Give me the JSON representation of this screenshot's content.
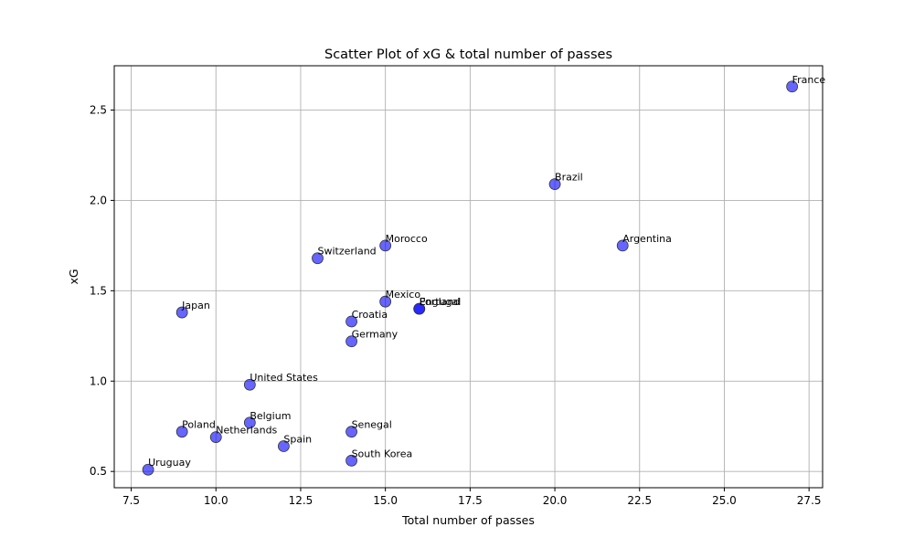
{
  "chart_data": {
    "type": "scatter",
    "title": "Scatter Plot of xG & total number of passes",
    "xlabel": "Total number of passes",
    "ylabel": "xG",
    "xlim": [
      7.0,
      27.9
    ],
    "ylim": [
      0.41,
      2.745
    ],
    "xticks": [
      7.5,
      10.0,
      12.5,
      15.0,
      17.5,
      20.0,
      22.5,
      25.0,
      27.5
    ],
    "yticks": [
      0.5,
      1.0,
      1.5,
      2.0,
      2.5
    ],
    "xtick_labels": [
      "7.5",
      "10.0",
      "12.5",
      "15.0",
      "17.5",
      "20.0",
      "22.5",
      "25.0",
      "27.5"
    ],
    "ytick_labels": [
      "0.5",
      "1.0",
      "1.5",
      "2.0",
      "2.5"
    ],
    "grid": true,
    "marker_color": "#0000ff",
    "marker_edge_color": "#333333",
    "marker_alpha": 0.6,
    "points": [
      {
        "label": "France",
        "x": 27,
        "y": 2.63
      },
      {
        "label": "Brazil",
        "x": 20,
        "y": 2.09
      },
      {
        "label": "Morocco",
        "x": 15,
        "y": 1.75
      },
      {
        "label": "Argentina",
        "x": 22,
        "y": 1.75
      },
      {
        "label": "Switzerland",
        "x": 13,
        "y": 1.68
      },
      {
        "label": "Mexico",
        "x": 15,
        "y": 1.44
      },
      {
        "label": "England",
        "x": 16,
        "y": 1.4
      },
      {
        "label": "Portugal",
        "x": 16,
        "y": 1.4
      },
      {
        "label": "Japan",
        "x": 9,
        "y": 1.38
      },
      {
        "label": "Croatia",
        "x": 14,
        "y": 1.33
      },
      {
        "label": "Germany",
        "x": 14,
        "y": 1.22
      },
      {
        "label": "United States",
        "x": 11,
        "y": 0.98
      },
      {
        "label": "Belgium",
        "x": 11,
        "y": 0.77
      },
      {
        "label": "Senegal",
        "x": 14,
        "y": 0.72
      },
      {
        "label": "Poland",
        "x": 9,
        "y": 0.72
      },
      {
        "label": "Netherlands",
        "x": 10,
        "y": 0.69
      },
      {
        "label": "Spain",
        "x": 12,
        "y": 0.64
      },
      {
        "label": "South Korea",
        "x": 14,
        "y": 0.56
      },
      {
        "label": "Uruguay",
        "x": 8,
        "y": 0.51
      }
    ]
  }
}
